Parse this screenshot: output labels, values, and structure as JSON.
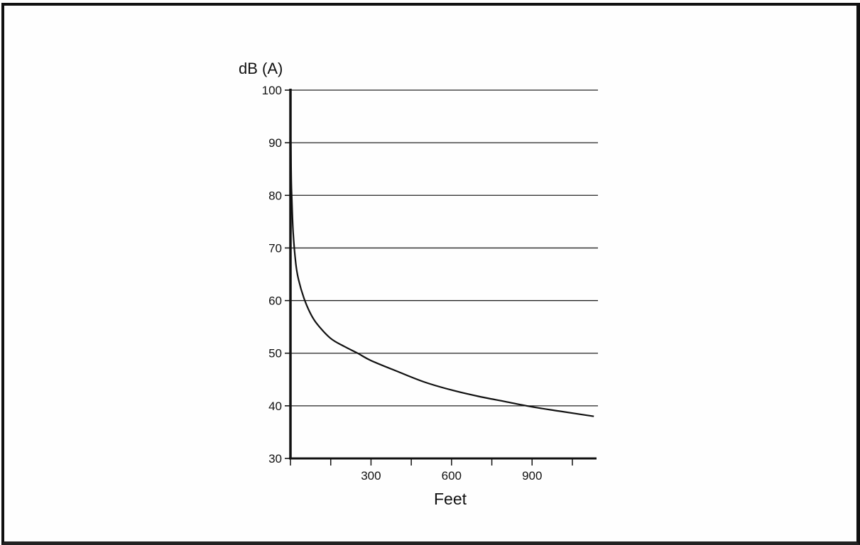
{
  "chart_data": {
    "type": "line",
    "title": "",
    "ylabel": "dB (A)",
    "xlabel": "Feet",
    "xlim": [
      0,
      1140
    ],
    "ylim": [
      30,
      100
    ],
    "y_ticks": [
      30,
      40,
      50,
      60,
      70,
      80,
      90,
      100
    ],
    "x_tick_labels": [
      300,
      600,
      900
    ],
    "x_minor_ticks": [
      0,
      150,
      300,
      450,
      600,
      750,
      900,
      1050
    ],
    "grid": "horizontal",
    "series": [
      {
        "x": [
          1,
          3,
          5,
          10,
          20,
          30,
          50,
          75,
          100,
          150,
          200,
          250,
          300,
          400,
          500,
          600,
          700,
          800,
          900,
          1000,
          1130
        ],
        "y": [
          91,
          83,
          79.5,
          73,
          67,
          64,
          60.5,
          57.5,
          55.5,
          52.8,
          51.3,
          50,
          48.6,
          46.5,
          44.5,
          43,
          41.8,
          40.8,
          39.8,
          39,
          38
        ]
      }
    ]
  }
}
